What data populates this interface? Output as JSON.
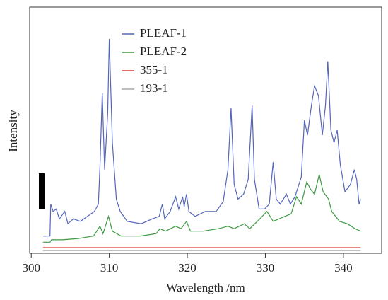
{
  "chart_data": {
    "type": "line",
    "xlabel": "Wavelength /nm",
    "ylabel": "Intensity",
    "xlim": [
      299.8,
      344.9
    ],
    "xticks": [
      300,
      310,
      320,
      330,
      340
    ],
    "ylim": [
      0,
      100
    ],
    "series": [
      {
        "name": "PLEAF-1",
        "color": "#5566bb",
        "x": [
          301.5,
          302.4,
          302.5,
          302.8,
          303.2,
          303.6,
          304.3,
          304.7,
          305.4,
          306.3,
          307.2,
          308.1,
          308.6,
          308.8,
          309.1,
          309.4,
          309.8,
          310.0,
          310.4,
          310.9,
          311.4,
          312.3,
          314.1,
          315.5,
          316.4,
          316.8,
          317.1,
          317.8,
          318.5,
          318.9,
          319.4,
          319.6,
          319.9,
          320.2,
          321.0,
          322.3,
          323.7,
          324.6,
          325.2,
          325.6,
          326.0,
          326.5,
          327.2,
          327.8,
          328.3,
          328.6,
          329.2,
          329.9,
          330.5,
          331.0,
          331.4,
          331.9,
          332.7,
          333.2,
          333.8,
          334.6,
          335.0,
          335.4,
          335.9,
          336.3,
          336.8,
          337.3,
          337.7,
          338.0,
          338.4,
          338.8,
          339.2,
          339.6,
          340.2,
          340.9,
          341.4,
          341.7,
          342.0,
          342.2
        ],
        "values": [
          7,
          7,
          20,
          17,
          18,
          14,
          17,
          12,
          14,
          13,
          15,
          17,
          20,
          35,
          65,
          34,
          57,
          87,
          45,
          22,
          17,
          13,
          12,
          14,
          15,
          20,
          14,
          17,
          23,
          18,
          23,
          19,
          24,
          17,
          15,
          17,
          17,
          21,
          34,
          59,
          28,
          22,
          24,
          30,
          60,
          30,
          18,
          18,
          20,
          37,
          22,
          20,
          24,
          20,
          23,
          31,
          54,
          48,
          60,
          68,
          64,
          48,
          60,
          78,
          50,
          45,
          50,
          36,
          25,
          28,
          34,
          30,
          20,
          22
        ]
      },
      {
        "name": "PLEAF-2",
        "color": "#3f9a44",
        "x": [
          301.5,
          302.4,
          302.6,
          304,
          306,
          308,
          308.8,
          309.2,
          309.6,
          309.9,
          310.4,
          311.5,
          314,
          316,
          316.5,
          317.2,
          318.5,
          319.2,
          319.9,
          320.4,
          322,
          324,
          325.2,
          326,
          327.3,
          328,
          329.3,
          330.2,
          331,
          332.5,
          333.3,
          334,
          334.6,
          335.3,
          335.8,
          336.3,
          336.9,
          337.4,
          338.1,
          338.5,
          339.5,
          340.5,
          341.5,
          342.2
        ],
        "values": [
          4.5,
          4.5,
          5.5,
          5.5,
          6,
          7,
          11,
          8,
          12,
          15,
          9,
          7,
          7,
          8,
          10,
          9,
          11,
          10,
          13,
          9,
          9,
          10,
          11,
          10,
          12,
          10,
          14,
          17,
          13,
          15,
          16,
          23,
          20,
          29,
          26,
          24,
          32,
          25,
          22,
          17,
          13,
          12,
          10,
          9
        ]
      },
      {
        "name": "355-1",
        "color": "#e03a3a",
        "x": [
          301.5,
          342.2
        ],
        "values": [
          2.3,
          2.3
        ]
      },
      {
        "name": "193-1",
        "color": "#aaaaaa",
        "x": [
          301.5,
          342.2
        ],
        "values": [
          1.1,
          1.1
        ]
      }
    ]
  }
}
